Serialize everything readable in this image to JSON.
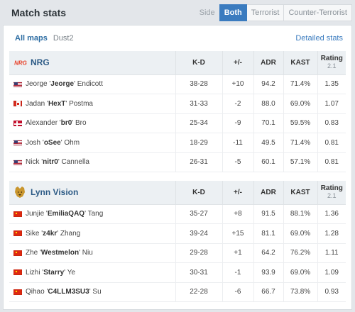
{
  "header": {
    "title": "Match stats",
    "side_label": "Side",
    "side_options": [
      "Both",
      "Terrorist",
      "Counter-Terrorist"
    ],
    "side_selected": "Both"
  },
  "maps": {
    "tabs": [
      "All maps",
      "Dust2"
    ],
    "selected": "All maps",
    "detailed_link": "Detailed stats"
  },
  "columns": {
    "kd": "K-D",
    "pm": "+/-",
    "adr": "ADR",
    "kast": "KAST",
    "rating": "Rating",
    "rating_version": "2.1"
  },
  "teams": [
    {
      "name": "NRG",
      "logo": "nrg-logo",
      "players": [
        {
          "flag": "us",
          "first": "Jeorge",
          "nick": "Jeorge",
          "last": "Endicott",
          "kd": "38-28",
          "pm": "+10",
          "adr": "94.2",
          "kast": "71.4%",
          "rating": "1.35"
        },
        {
          "flag": "ca",
          "first": "Jadan",
          "nick": "HexT",
          "last": "Postma",
          "kd": "31-33",
          "pm": "-2",
          "adr": "88.0",
          "kast": "69.0%",
          "rating": "1.07"
        },
        {
          "flag": "dk",
          "first": "Alexander",
          "nick": "br0",
          "last": "Bro",
          "kd": "25-34",
          "pm": "-9",
          "adr": "70.1",
          "kast": "59.5%",
          "rating": "0.83"
        },
        {
          "flag": "us",
          "first": "Josh",
          "nick": "oSee",
          "last": "Ohm",
          "kd": "18-29",
          "pm": "-11",
          "adr": "49.5",
          "kast": "71.4%",
          "rating": "0.81"
        },
        {
          "flag": "us",
          "first": "Nick",
          "nick": "nitr0",
          "last": "Cannella",
          "kd": "26-31",
          "pm": "-5",
          "adr": "60.1",
          "kast": "57.1%",
          "rating": "0.81"
        }
      ]
    },
    {
      "name": "Lynn Vision",
      "logo": "lynn-vision-logo",
      "players": [
        {
          "flag": "cn",
          "first": "Junjie",
          "nick": "EmiliaQAQ",
          "last": "Tang",
          "kd": "35-27",
          "pm": "+8",
          "adr": "91.5",
          "kast": "88.1%",
          "rating": "1.36"
        },
        {
          "flag": "cn",
          "first": "Sike",
          "nick": "z4kr",
          "last": "Zhang",
          "kd": "39-24",
          "pm": "+15",
          "adr": "81.1",
          "kast": "69.0%",
          "rating": "1.28"
        },
        {
          "flag": "cn",
          "first": "Zhe",
          "nick": "Westmelon",
          "last": "Niu",
          "kd": "29-28",
          "pm": "+1",
          "adr": "64.2",
          "kast": "76.2%",
          "rating": "1.11"
        },
        {
          "flag": "cn",
          "first": "Lizhi",
          "nick": "Starry",
          "last": "Ye",
          "kd": "30-31",
          "pm": "-1",
          "adr": "93.9",
          "kast": "69.0%",
          "rating": "1.09"
        },
        {
          "flag": "cn",
          "first": "Qihao",
          "nick": "C4LLM3SU3",
          "last": "Su",
          "kd": "22-28",
          "pm": "-6",
          "adr": "66.7",
          "kast": "73.8%",
          "rating": "0.93"
        }
      ]
    }
  ],
  "colors": {
    "accent": "#3a7bbf",
    "positive": "#2e9b3a",
    "negative": "#d2432b",
    "team_name": "#2d5b86"
  }
}
